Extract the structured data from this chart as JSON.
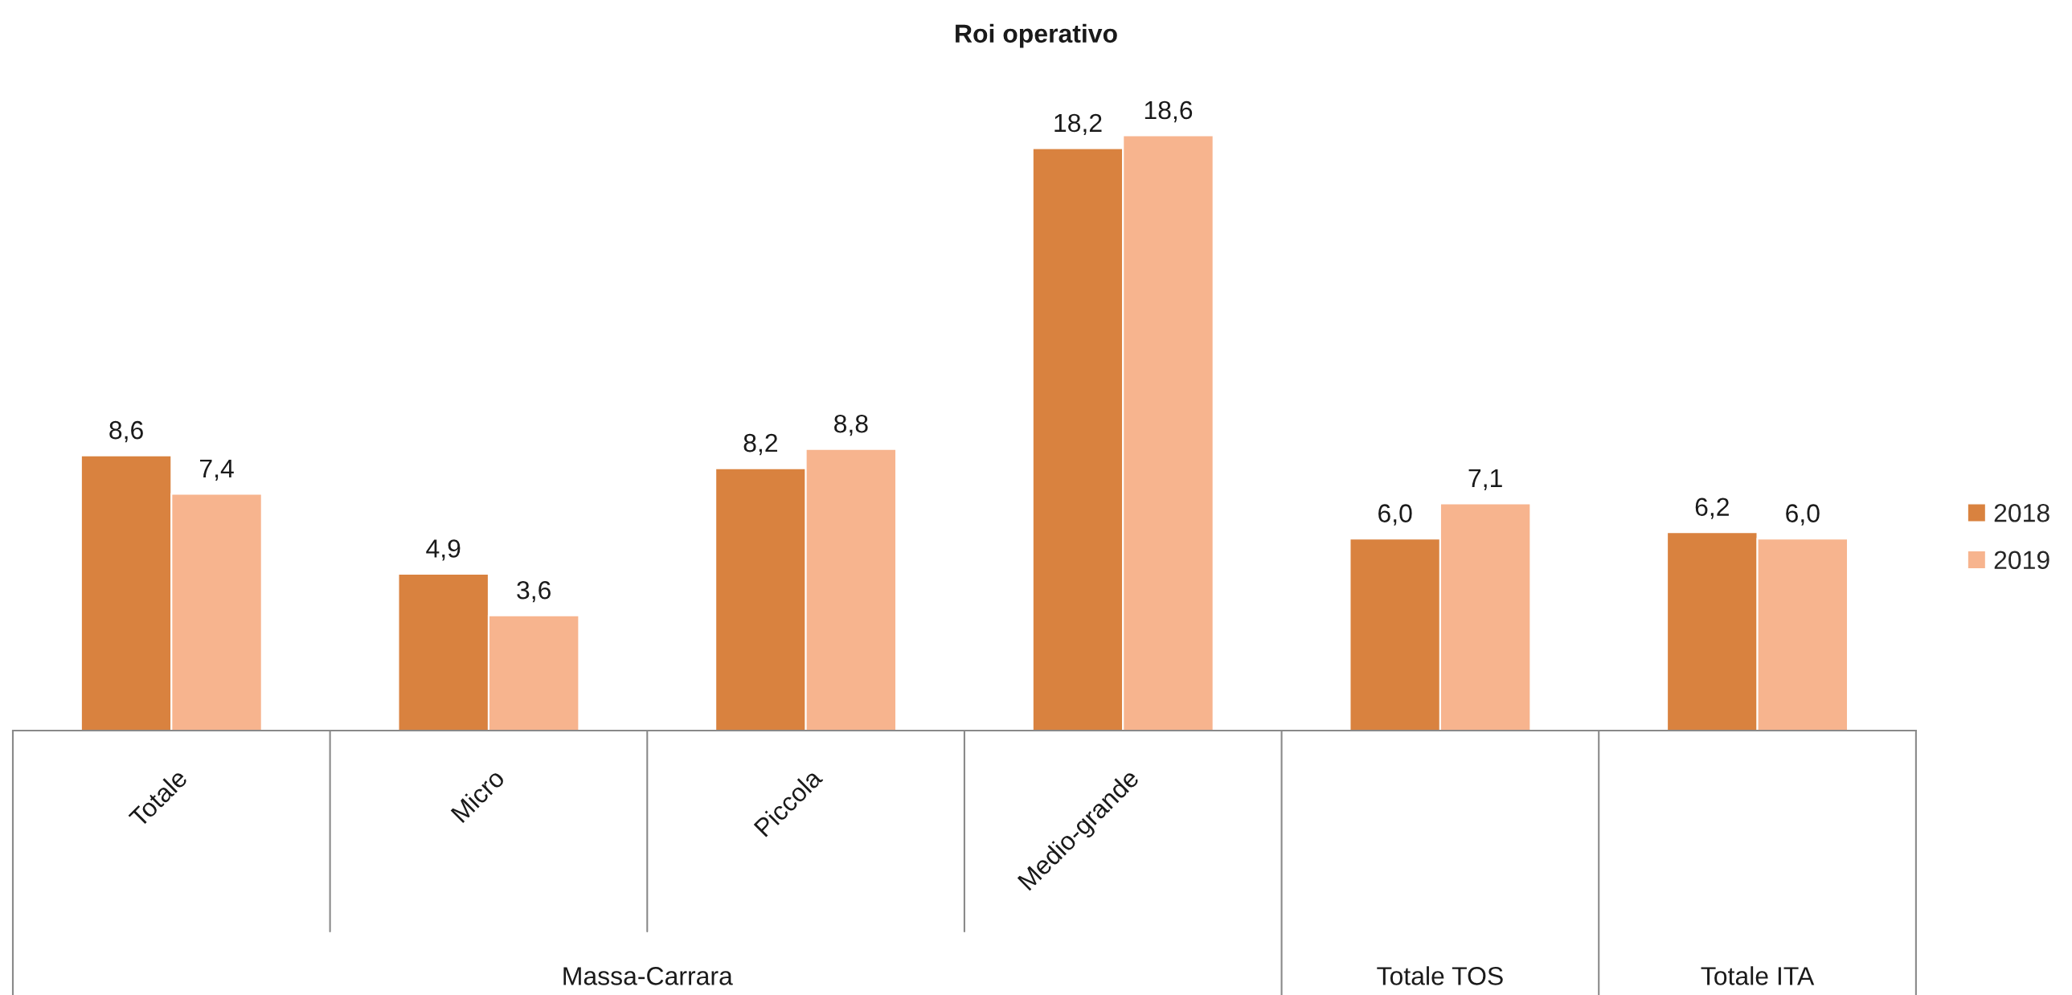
{
  "chart_data": {
    "type": "bar",
    "title": "Roi operativo",
    "categories": [
      "Totale",
      "Micro",
      "Piccola",
      "Medio-grande",
      null,
      null
    ],
    "annotations": [
      "Massa-Carrara",
      "Totale TOS",
      "Totale ITA"
    ],
    "series": [
      {
        "name": "2018",
        "color": "#d9823f",
        "values": [
          8.6,
          4.9,
          8.2,
          18.2,
          6.0,
          6.2
        ],
        "value_labels": [
          "8,6",
          "4,9",
          "8,2",
          "18,2",
          "6,0",
          "6,2"
        ]
      },
      {
        "name": "2019",
        "color": "#f7b48e",
        "values": [
          7.4,
          3.6,
          8.8,
          18.6,
          7.1,
          6.0
        ],
        "value_labels": [
          "7,4",
          "3,6",
          "8,8",
          "18,6",
          "7,1",
          "6,0"
        ]
      }
    ],
    "legend": "right",
    "tick_labels": "x"
  }
}
